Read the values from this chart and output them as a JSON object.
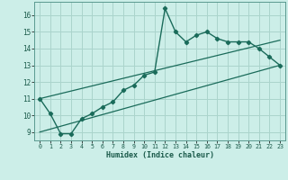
{
  "xlabel": "Humidex (Indice chaleur)",
  "bg_color": "#cceee8",
  "grid_color": "#aad4cc",
  "line_color": "#1a6b5a",
  "xlim": [
    -0.5,
    23.5
  ],
  "ylim": [
    8.5,
    16.8
  ],
  "xticks": [
    0,
    1,
    2,
    3,
    4,
    5,
    6,
    7,
    8,
    9,
    10,
    11,
    12,
    13,
    14,
    15,
    16,
    17,
    18,
    19,
    20,
    21,
    22,
    23
  ],
  "yticks": [
    9,
    10,
    11,
    12,
    13,
    14,
    15,
    16
  ],
  "main_x": [
    0,
    1,
    2,
    3,
    4,
    5,
    6,
    7,
    8,
    9,
    10,
    11,
    12,
    13,
    14,
    15,
    16,
    17,
    18,
    19,
    20,
    21,
    22,
    23
  ],
  "main_y": [
    11.0,
    10.1,
    8.9,
    8.9,
    9.8,
    10.1,
    10.5,
    10.8,
    11.5,
    11.8,
    12.4,
    12.6,
    16.4,
    15.0,
    14.4,
    14.8,
    15.0,
    14.6,
    14.4,
    14.4,
    14.4,
    14.0,
    13.5,
    13.0
  ],
  "line1_x": [
    0,
    23
  ],
  "line1_y": [
    11.0,
    14.5
  ],
  "line2_x": [
    0,
    23
  ],
  "line2_y": [
    9.0,
    13.0
  ]
}
